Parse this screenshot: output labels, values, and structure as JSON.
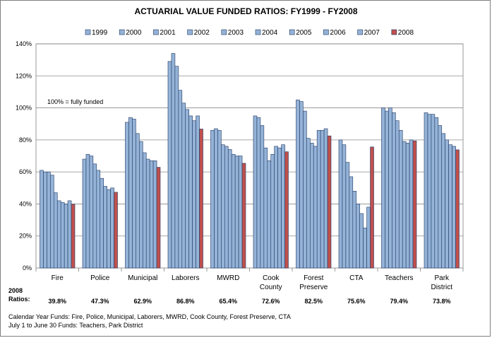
{
  "chart_data": {
    "type": "bar",
    "title": "ACTUARIAL VALUE FUNDED RATIOS: FY1999 - FY2008",
    "ylim": [
      0,
      140
    ],
    "yticks": [
      "0%",
      "20%",
      "40%",
      "60%",
      "80%",
      "100%",
      "120%",
      "140%"
    ],
    "grid": true,
    "legend_position": "top",
    "annotation": "100% = fully funded",
    "categories": [
      "Fire",
      "Police",
      "Municipal",
      "Laborers",
      "MWRD",
      "Cook County",
      "Forest Preserve",
      "CTA",
      "Teachers",
      "Park District"
    ],
    "series": [
      {
        "name": "1999",
        "values": [
          61,
          68,
          91,
          129,
          86,
          95,
          105,
          80,
          100,
          97
        ]
      },
      {
        "name": "2000",
        "values": [
          60,
          71,
          94,
          134,
          87,
          94,
          104,
          77,
          98,
          96
        ]
      },
      {
        "name": "2001",
        "values": [
          60,
          70,
          93,
          126,
          86,
          89,
          98,
          66,
          100,
          96
        ]
      },
      {
        "name": "2002",
        "values": [
          58,
          65,
          84,
          111,
          77,
          75,
          81,
          57,
          97,
          94
        ]
      },
      {
        "name": "2003",
        "values": [
          47,
          61,
          79,
          103,
          76,
          67,
          78,
          48,
          92,
          89
        ]
      },
      {
        "name": "2004",
        "values": [
          42,
          56,
          72,
          99,
          74,
          71,
          76,
          40,
          86,
          84
        ]
      },
      {
        "name": "2005",
        "values": [
          41,
          51,
          68,
          95,
          71,
          76,
          86,
          34,
          79,
          80
        ]
      },
      {
        "name": "2006",
        "values": [
          40,
          49,
          67,
          92,
          70,
          75,
          86,
          25,
          78,
          77
        ]
      },
      {
        "name": "2007",
        "values": [
          42,
          50,
          67,
          95,
          70,
          77,
          87,
          38,
          80,
          76
        ]
      },
      {
        "name": "2008",
        "values": [
          39.8,
          47.3,
          62.9,
          86.8,
          65.4,
          72.6,
          82.5,
          75.6,
          79.4,
          73.8
        ]
      }
    ],
    "colors": {
      "bar_blue": "#95b3d7",
      "bar_2008": "#c0504d",
      "bar_edge": "#1f3864",
      "grid": "#8c8c8c"
    },
    "ratios_label": [
      "2008",
      "Ratios:"
    ],
    "ratios_text": [
      "39.8%",
      "47.3%",
      "62.9%",
      "86.8%",
      "65.4%",
      "72.6%",
      "82.5%",
      "75.6%",
      "79.4%",
      "73.8%"
    ]
  },
  "footnotes": [
    "Calendar Year Funds: Fire, Police, Municipal, Laborers, MWRD, Cook County, Forest Preserve, CTA",
    " July 1 to June 30 Funds: Teachers, Park District"
  ]
}
